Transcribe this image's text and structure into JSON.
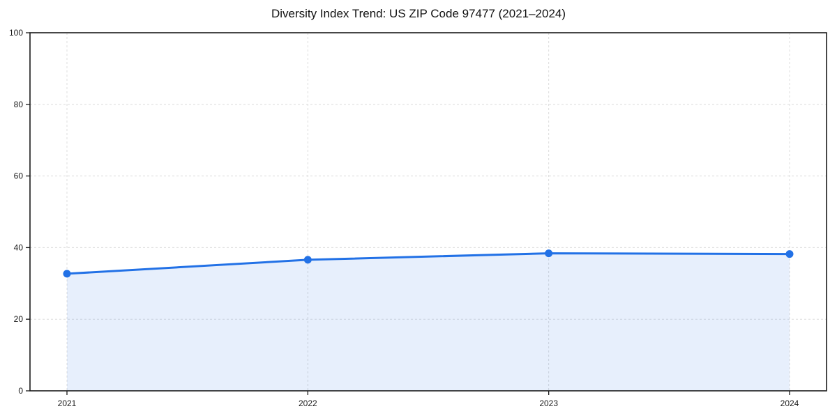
{
  "chart_data": {
    "type": "line",
    "title": "Diversity Index Trend: US ZIP Code 97477 (2021–2024)",
    "x": [
      "2021",
      "2022",
      "2023",
      "2024"
    ],
    "series": [
      {
        "name": "Diversity Index",
        "values": [
          32.7,
          36.6,
          38.4,
          38.2
        ]
      }
    ],
    "xlabel": "",
    "ylabel": "",
    "ylim": [
      0,
      100
    ],
    "yticks": [
      0,
      20,
      40,
      60,
      80,
      100
    ],
    "grid": "dashed gridlines, both horizontal and vertical",
    "legend": "none",
    "area_fill": true,
    "marker": "circle",
    "colors": {
      "line": "#2271e6",
      "marker": "#2271e6",
      "fill": "#2271e6",
      "fill_opacity": 0.11,
      "grid": "#dcdcdc",
      "axis": "#1a1a1a",
      "tick_label": "#1a1a1a",
      "background": "#ffffff"
    }
  }
}
